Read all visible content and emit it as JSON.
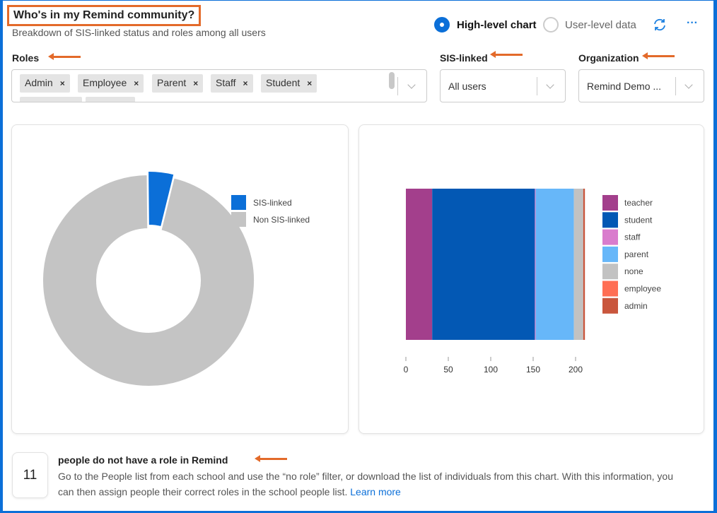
{
  "header": {
    "title": "Who's in my Remind community?",
    "subtitle": "Breakdown of SIS-linked status and roles among all users",
    "view_options": [
      {
        "label": "High-level chart",
        "selected": true
      },
      {
        "label": "User-level data",
        "selected": false
      }
    ],
    "refresh_icon": "refresh-icon",
    "more_icon": "more-icon"
  },
  "filters": {
    "roles": {
      "label": "Roles",
      "chips": [
        "Admin",
        "Employee",
        "Parent",
        "Staff",
        "Student"
      ],
      "remove_glyph": "×"
    },
    "sis": {
      "label": "SIS-linked",
      "value": "All users"
    },
    "org": {
      "label": "Organization",
      "value": "Remind Demo ..."
    }
  },
  "colors": {
    "accent": "#0b6fd8",
    "annotation": "#e36a2a"
  },
  "chart_data": [
    {
      "type": "pie",
      "donut": true,
      "legend": [
        "SIS-linked",
        "Non SIS-linked"
      ],
      "values": [
        4,
        96
      ],
      "colors": [
        "#0b6fd8",
        "#c4c4c4"
      ],
      "legend_position": "right"
    },
    {
      "type": "bar",
      "stacked": true,
      "orientation": "horizontal",
      "series": [
        {
          "name": "teacher",
          "value": 31,
          "color": "#a33f8c"
        },
        {
          "name": "student",
          "value": 121,
          "color": "#0358b4"
        },
        {
          "name": "staff",
          "value": 1,
          "color": "#d97ccd"
        },
        {
          "name": "parent",
          "value": 45,
          "color": "#67b7f9"
        },
        {
          "name": "none",
          "value": 11,
          "color": "#c2c2c2"
        },
        {
          "name": "employee",
          "value": 0,
          "color": "#ff6e54"
        },
        {
          "name": "admin",
          "value": 2,
          "color": "#c9563d"
        }
      ],
      "xticks": [
        0,
        50,
        100,
        150,
        200
      ],
      "xlim": [
        0,
        212
      ],
      "legend_position": "right"
    }
  ],
  "footer": {
    "count": "11",
    "heading": "people do not have a role in Remind",
    "body": "Go to the People list from each school and use the “no role” filter, or download the list of individuals from this chart. With this information, you can then assign people their correct roles in the school people list.",
    "link": "Learn more"
  }
}
